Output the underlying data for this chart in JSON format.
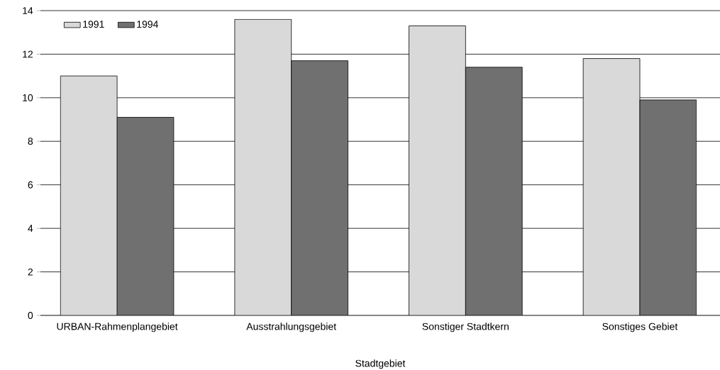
{
  "chart_data": {
    "type": "bar",
    "xlabel": "Stadtgebiet",
    "categories": [
      "URBAN-Rahmenplangebiet",
      "Ausstrahlungsgebiet",
      "Sonstiger Stadtkern",
      "Sonstiges Gebiet"
    ],
    "series": [
      {
        "name": "1991",
        "color": "#d9d9d9",
        "values": [
          11.0,
          13.6,
          13.3,
          11.8
        ]
      },
      {
        "name": "1994",
        "color": "#707070",
        "values": [
          9.1,
          11.7,
          11.4,
          9.9
        ]
      }
    ],
    "ylim": [
      0,
      14
    ],
    "yticks": [
      0,
      2,
      4,
      6,
      8,
      10,
      12,
      14
    ],
    "grid": "y",
    "legend": "top left"
  }
}
